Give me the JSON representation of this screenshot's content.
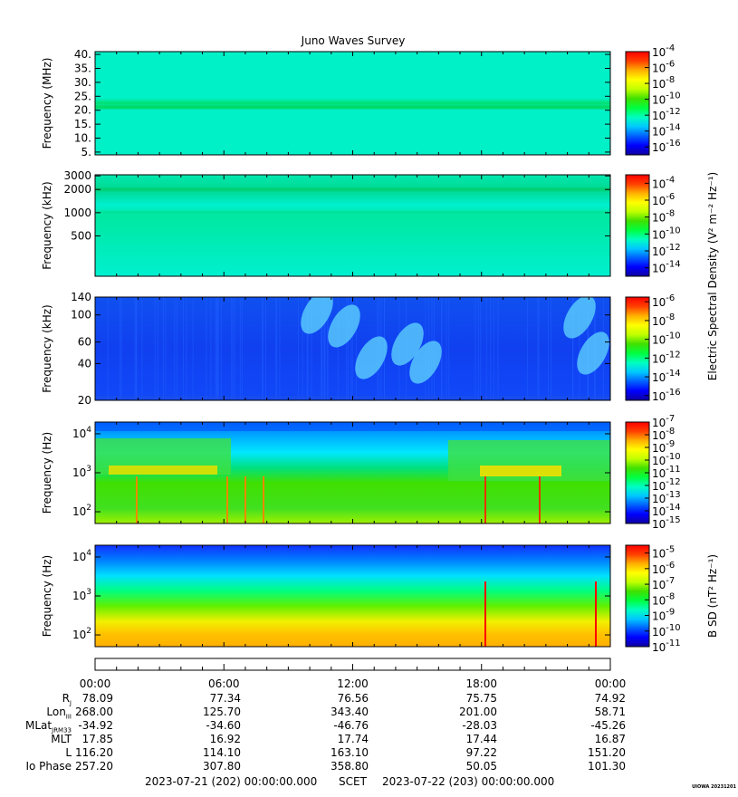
{
  "title": "Juno Waves Survey",
  "chart_data": [
    {
      "type": "heatmap",
      "panel": "E-field high band",
      "ylabel": "Frequency (MHz)",
      "yscale": "linear",
      "ylim": [
        4,
        41
      ],
      "yticks": [
        "5.",
        "10.",
        "15.",
        "20.",
        "25.",
        "30.",
        "35.",
        "40."
      ],
      "ytick_values": [
        5,
        10,
        15,
        20,
        25,
        30,
        35,
        40
      ],
      "colorbar": {
        "exponents": [
          "-4",
          "-6",
          "-8",
          "-10",
          "-12",
          "-14",
          "-16"
        ],
        "range": [
          -17,
          -4
        ]
      }
    },
    {
      "type": "heatmap",
      "panel": "E-field mid band",
      "ylabel": "Frequency (kHz)",
      "yscale": "log",
      "ylim": [
        150,
        3100
      ],
      "yticks": [
        "3000",
        "2000",
        "1000",
        "500"
      ],
      "ytick_values": [
        3000,
        2000,
        1000,
        500
      ],
      "colorbar": {
        "exponents": [
          "-4",
          "-6",
          "-8",
          "-10",
          "-12",
          "-14"
        ],
        "range": [
          -15,
          -3
        ]
      }
    },
    {
      "type": "heatmap",
      "panel": "E-field low band",
      "ylabel": "Frequency (kHz)",
      "yscale": "log",
      "ylim": [
        20,
        140
      ],
      "yticks": [
        "140",
        "100",
        "60",
        "40",
        "20"
      ],
      "ytick_values": [
        140,
        100,
        60,
        40,
        20
      ],
      "colorbar": {
        "exponents": [
          "-6",
          "-8",
          "-10",
          "-12",
          "-14",
          "-16"
        ],
        "range": [
          -16.5,
          -5.5
        ]
      }
    },
    {
      "type": "heatmap",
      "panel": "E-field LF",
      "ylabel": "Frequency (Hz)",
      "yscale": "log",
      "ylim": [
        50,
        20000
      ],
      "yticks_exp": [
        "4",
        "3",
        "2"
      ],
      "ytick_values": [
        10000,
        1000,
        100
      ],
      "colorbar": {
        "exponents": [
          "-7",
          "-8",
          "-9",
          "-10",
          "-11",
          "-12",
          "-13",
          "-14",
          "-15"
        ],
        "range": [
          -15,
          -7
        ]
      }
    },
    {
      "type": "heatmap",
      "panel": "B-field",
      "ylabel": "Frequency (Hz)",
      "yscale": "log",
      "ylim": [
        50,
        20000
      ],
      "yticks_exp": [
        "4",
        "3",
        "2"
      ],
      "ytick_values": [
        10000,
        1000,
        100
      ],
      "colorbar": {
        "exponents": [
          "-5",
          "-6",
          "-7",
          "-8",
          "-9",
          "-10",
          "-11"
        ],
        "range": [
          -11,
          -4.5
        ]
      }
    }
  ],
  "colorbar_labels": {
    "electric": "Electric Spectral Density (V² m⁻² Hz⁻¹)",
    "magnetic": "B SD (nT² Hz⁻¹)"
  },
  "time_axis": {
    "ticks": [
      "00:00",
      "06:00",
      "12:00",
      "18:00",
      "00:00"
    ]
  },
  "ephemeris": {
    "labels": [
      "R",
      "Lon",
      "MLat",
      "MLT",
      "L",
      "Io Phase"
    ],
    "label_subscripts": [
      "J",
      "III",
      "JRM33",
      "",
      "",
      ""
    ],
    "rows": [
      [
        "78.09",
        "77.34",
        "76.56",
        "75.75",
        "74.92"
      ],
      [
        "268.00",
        "125.70",
        "343.40",
        "201.00",
        "58.71"
      ],
      [
        "-34.92",
        "-34.60",
        "-46.76",
        "-28.03",
        "-45.26"
      ],
      [
        "17.85",
        "16.92",
        "17.74",
        "17.44",
        "16.87"
      ],
      [
        "116.20",
        "114.10",
        "163.10",
        "97.22",
        "151.20"
      ],
      [
        "257.20",
        "307.80",
        "358.80",
        "50.05",
        "101.30"
      ]
    ]
  },
  "footer": {
    "start": "2023-07-21 (202) 00:00:00.000",
    "scet": "SCET",
    "end": "2023-07-22 (203) 00:00:00.000",
    "tag": "UIOWA 20231201"
  }
}
